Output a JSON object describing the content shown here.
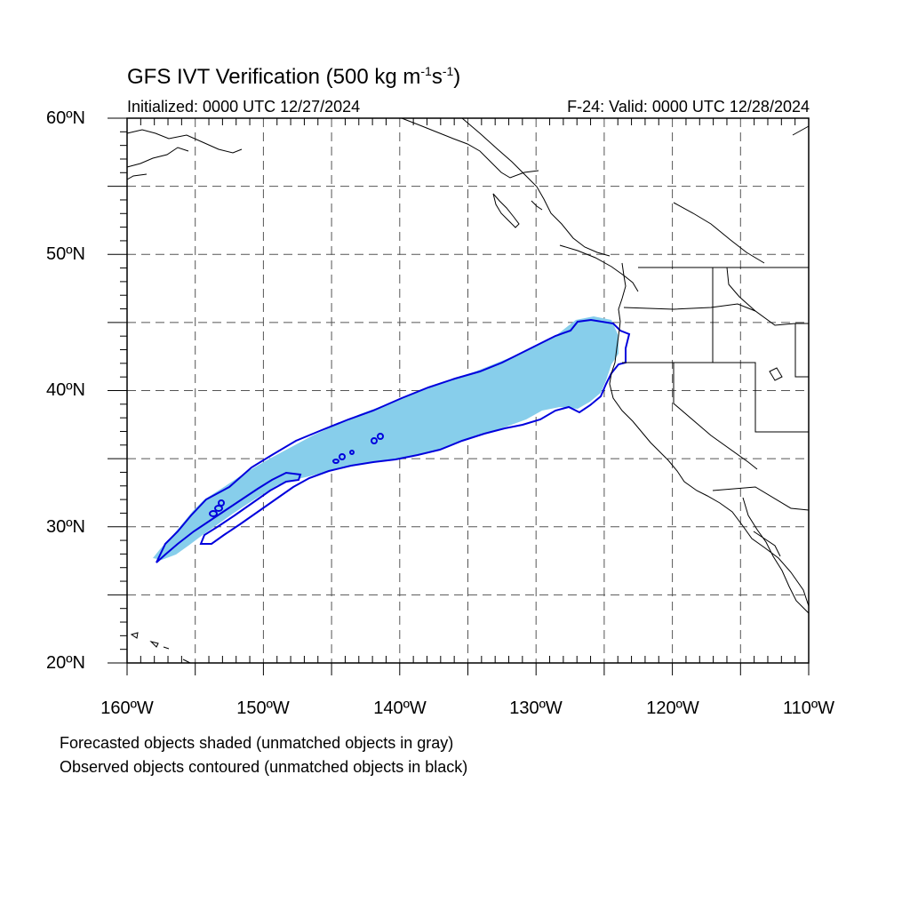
{
  "header": {
    "title_main": "GFS IVT Verification (500 kg m",
    "title_sup1": "-1",
    "title_mid": "s",
    "title_sup2": "-1",
    "title_end": ")",
    "initialized": "Initialized: 0000 UTC 12/27/2024",
    "valid": "F-24: Valid: 0000 UTC 12/28/2024"
  },
  "axes": {
    "lat_labels": [
      "60ºN",
      "50ºN",
      "40ºN",
      "30ºN",
      "20ºN"
    ],
    "lon_labels": [
      "160ºW",
      "150ºW",
      "140ºW",
      "130ºW",
      "120ºW",
      "110ºW"
    ],
    "lat_range": [
      20,
      60
    ],
    "lon_range": [
      -160,
      -110
    ],
    "grid_spacing_deg": 5,
    "grid": "dashed"
  },
  "legend": {
    "line1": "Forecasted objects shaded (unmatched objects in gray)",
    "line2": "Observed objects contoured (unmatched objects in black)"
  },
  "colors": {
    "forecast_fill": "#87ceeb",
    "observed_contour": "#0000dd",
    "coastline": "#000000",
    "grid": "#555555"
  }
}
